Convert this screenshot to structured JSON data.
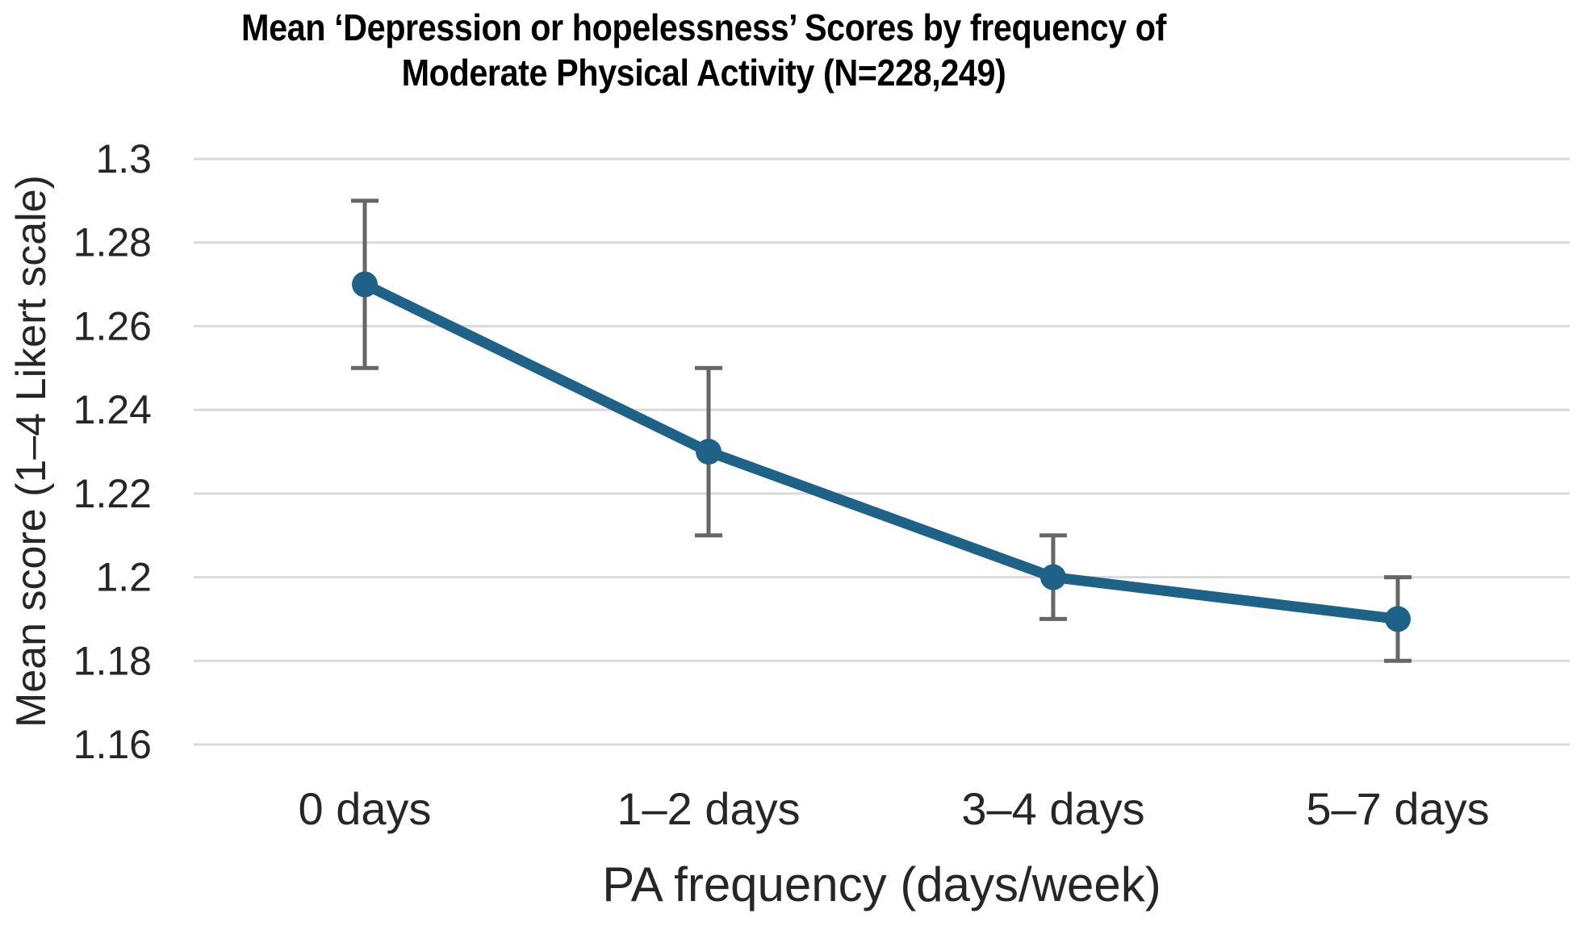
{
  "chart_data": {
    "type": "line",
    "title": "Mean ‘Depression or hopelessness’ Scores by frequency of Moderate Physical Activity (N=228,249)",
    "title_lines": [
      "Mean ‘Depression or hopelessness’ Scores by frequency of",
      "Moderate Physical Activity (N=228,249)"
    ],
    "xlabel": "PA frequency (days/week)",
    "ylabel": "Mean score (1–4 Likert scale)",
    "categories": [
      "0 days",
      "1–2 days",
      "3–4 days",
      "5–7 days"
    ],
    "values": [
      1.27,
      1.23,
      1.2,
      1.19
    ],
    "error_bars": {
      "low": [
        1.25,
        1.21,
        1.19,
        1.18
      ],
      "high": [
        1.29,
        1.25,
        1.21,
        1.2
      ]
    },
    "ylim": [
      1.16,
      1.3
    ],
    "y_ticks": [
      {
        "value": 1.3,
        "label": "1.3"
      },
      {
        "value": 1.28,
        "label": "1.28"
      },
      {
        "value": 1.26,
        "label": "1.26"
      },
      {
        "value": 1.24,
        "label": "1.24"
      },
      {
        "value": 1.22,
        "label": "1.22"
      },
      {
        "value": 1.2,
        "label": "1.2"
      },
      {
        "value": 1.18,
        "label": "1.18"
      },
      {
        "value": 1.16,
        "label": "1.16"
      }
    ],
    "grid": "horizontal",
    "legend": "none",
    "marker": "circle",
    "colors": {
      "series": "#1f6287",
      "error_bar": "#666666",
      "gridline": "#d9d9d9",
      "tick_text": "#262626",
      "title_text": "#000000"
    }
  }
}
